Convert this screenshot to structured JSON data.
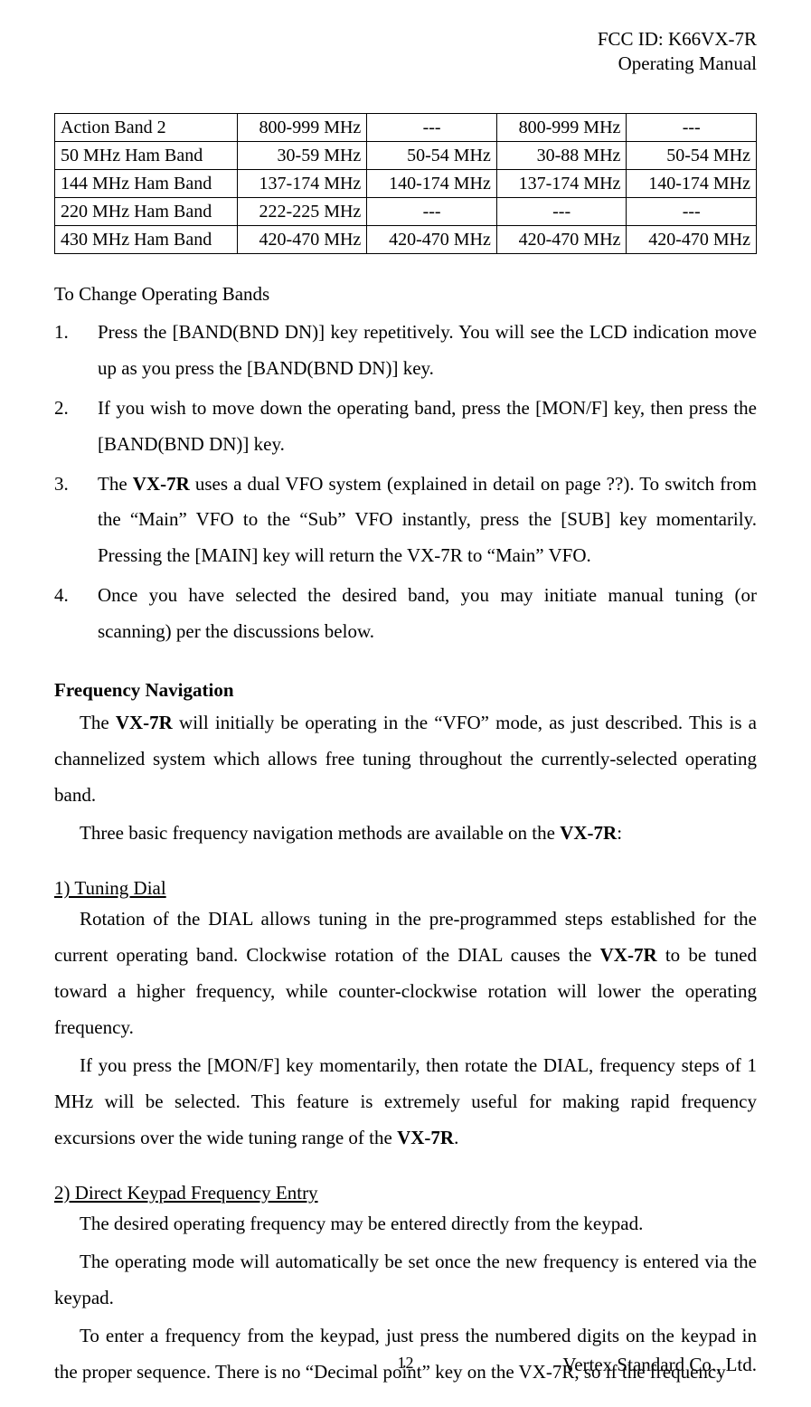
{
  "header": {
    "fcc_id": "FCC ID: K66VX-7R",
    "manual": "Operating Manual"
  },
  "band_table": {
    "rows": [
      {
        "label": "Action Band 2",
        "c1": "800-999 MHz",
        "c2": "---",
        "c3": "800-999 MHz",
        "c4": "---"
      },
      {
        "label": "50 MHz Ham Band",
        "c1": "30-59 MHz",
        "c2": "50-54 MHz",
        "c3": "30-88 MHz",
        "c4": "50-54 MHz"
      },
      {
        "label": "144 MHz Ham Band",
        "c1": "137-174 MHz",
        "c2": "140-174 MHz",
        "c3": "137-174 MHz",
        "c4": "140-174 MHz"
      },
      {
        "label": "220 MHz Ham Band",
        "c1": "222-225 MHz",
        "c2": "---",
        "c3": "---",
        "c4": "---"
      },
      {
        "label": "430 MHz Ham Band",
        "c1": "420-470 MHz",
        "c2": "420-470 MHz",
        "c3": "420-470 MHz",
        "c4": "420-470 MHz"
      }
    ]
  },
  "change_bands": {
    "title": "To Change Operating Bands",
    "items": {
      "n1": "1.",
      "t1a": "Press the [BAND(BND DN)] key repetitively. You will see the LCD indication move up as you press the [BAND(BND DN)] key.",
      "n2": "2.",
      "t2a": "If you wish to move down the operating band, press the [MON/F] key, then press the [BAND(BND DN)] key.",
      "n3": "3.",
      "t3a": "The ",
      "t3b": "VX-7R",
      "t3c": " uses a dual VFO system (explained in detail on page ??). To switch from the “Main” VFO to the “Sub” VFO instantly, press the [SUB] key momentarily. Pressing the [MAIN] key will return the VX-7R to “Main” VFO.",
      "n4": "4.",
      "t4a": "Once you have selected the desired band, you may initiate manual tuning (or scanning) per the discussions below."
    }
  },
  "freq_nav": {
    "heading": "Frequency Navigation",
    "p1a": "The ",
    "p1b": "VX-7R",
    "p1c": " will initially be operating in the “VFO” mode, as just described. This is a channelized system which allows free tuning throughout the currently-selected operating band.",
    "p2a": "Three basic frequency navigation methods are available on the ",
    "p2b": "VX-7R",
    "p2c": ":"
  },
  "tuning_dial": {
    "heading": "1) Tuning Dial",
    "p1a": "Rotation of the DIAL allows tuning in the pre-programmed steps established for the current operating band. Clockwise rotation of the DIAL causes the ",
    "p1b": "VX-7R",
    "p1c": " to be tuned toward a higher frequency, while counter-clockwise rotation will lower the operating frequency.",
    "p2a": "If you press the [MON/F] key momentarily, then rotate the DIAL, frequency steps of 1 MHz will be selected. This feature is extremely useful for making rapid frequency excursions over the wide tuning range of the ",
    "p2b": "VX-7R",
    "p2c": "."
  },
  "direct_entry": {
    "heading": "2) Direct Keypad Frequency Entry",
    "p1": "The desired operating frequency may be entered directly from the keypad.",
    "p2": "The operating mode will automatically be set once the new frequency is entered via the keypad.",
    "p3": "To enter a frequency from the keypad, just press the numbered digits on the keypad in the proper sequence. There is no “Decimal point” key on the VX-7R, so if the frequency"
  },
  "footer": {
    "page": "12",
    "company": "Vertex Standard Co., Ltd."
  }
}
